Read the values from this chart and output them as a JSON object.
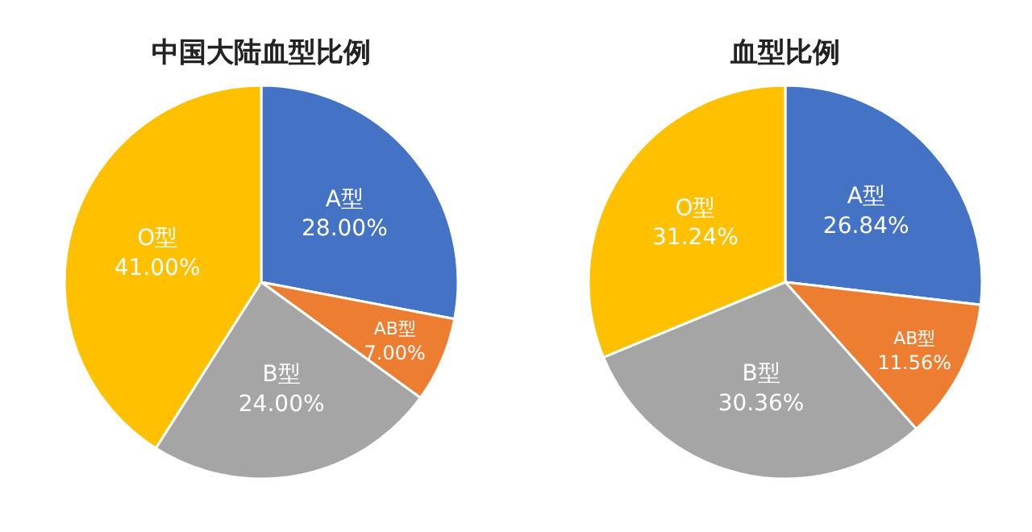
{
  "chart_data": [
    {
      "type": "pie",
      "title": "中国大陆血型比例",
      "categories": [
        "A型",
        "AB型",
        "B型",
        "O型"
      ],
      "values": [
        28,
        7,
        24,
        41
      ],
      "colors": [
        "#4472c4",
        "#ed7d31",
        "#a5a5a5",
        "#ffc000"
      ],
      "value_labels": [
        "28.00%",
        "7.00%",
        "24.00%",
        "41.00%"
      ]
    },
    {
      "type": "pie",
      "title": "血型比例",
      "categories": [
        "A型",
        "AB型",
        "B型",
        "O型"
      ],
      "values": [
        26.84,
        11.56,
        30.36,
        31.24
      ],
      "colors": [
        "#4472c4",
        "#ed7d31",
        "#a5a5a5",
        "#ffc000"
      ],
      "value_labels": [
        "26.84%",
        "11.56%",
        "30.36%",
        "31.24%"
      ]
    }
  ]
}
